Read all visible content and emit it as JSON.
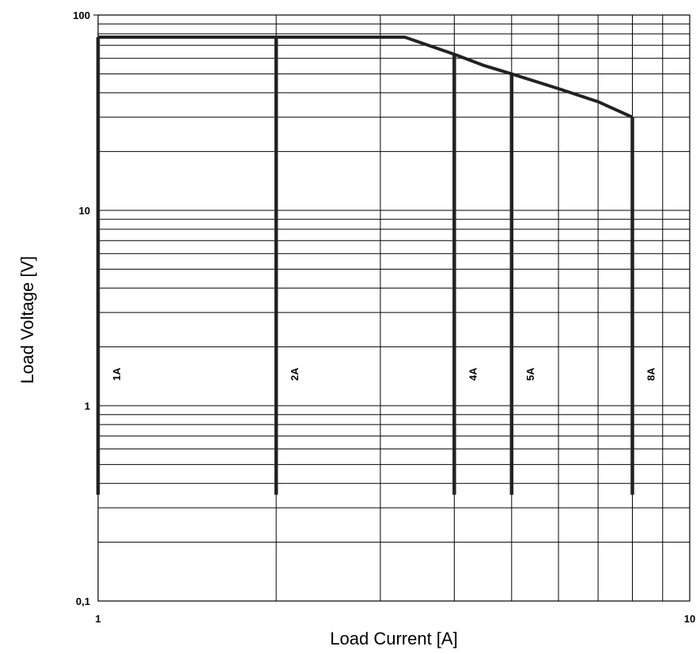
{
  "chart_data": {
    "type": "line",
    "title": "",
    "xlabel": "Load Current [A]",
    "ylabel": "Load Voltage [V]",
    "x_scale": "log",
    "y_scale": "log",
    "xlim": [
      1,
      10
    ],
    "ylim": [
      0.1,
      100
    ],
    "grid": true,
    "x_tick_labels": [
      {
        "value": 1,
        "label": "1"
      },
      {
        "value": 10,
        "label": "10"
      }
    ],
    "y_tick_labels": [
      {
        "value": 0.1,
        "label": "0,1"
      },
      {
        "value": 1,
        "label": "1"
      },
      {
        "value": 10,
        "label": "10"
      },
      {
        "value": 100,
        "label": "100"
      }
    ],
    "boundary_curve": {
      "x": [
        1,
        3.3,
        4,
        4.5,
        5,
        6,
        7,
        8
      ],
      "y": [
        77,
        77,
        63,
        55,
        50,
        42,
        36,
        30
      ]
    },
    "series": [
      {
        "name": "1A",
        "x": 1,
        "y_min": 0.35,
        "y_max": 77
      },
      {
        "name": "2A",
        "x": 2,
        "y_min": 0.35,
        "y_max": 77
      },
      {
        "name": "4A",
        "x": 4,
        "y_min": 0.35,
        "y_max": 63
      },
      {
        "name": "5A",
        "x": 5,
        "y_min": 0.35,
        "y_max": 50
      },
      {
        "name": "8A",
        "x": 8,
        "y_min": 0.35,
        "y_max": 30
      }
    ],
    "series_label_y": 1.45
  }
}
